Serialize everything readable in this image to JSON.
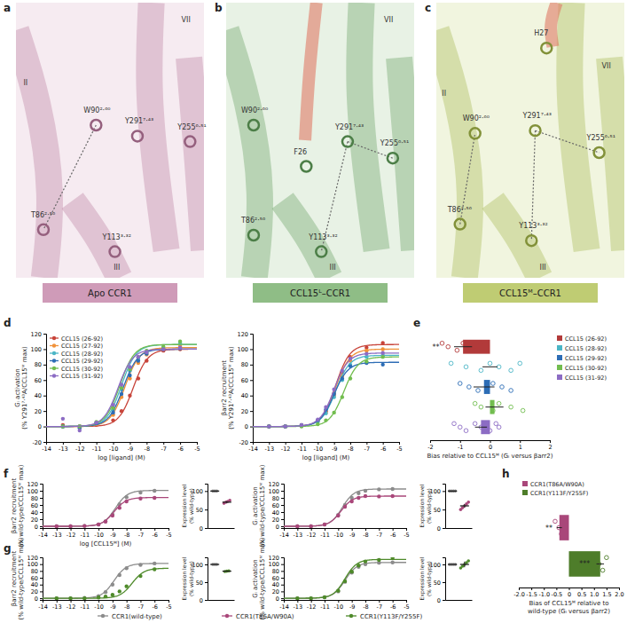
{
  "panel_labels": [
    "a",
    "b",
    "c",
    "d",
    "e",
    "f",
    "g",
    "h"
  ],
  "structures": [
    {
      "caption": "Apo CCR1",
      "labels": [
        "II",
        "VII",
        "W90²·⁶⁰",
        "Y291⁷·⁴³",
        "Y255⁶·⁵¹",
        "T86²·⁵⁶",
        "Y113³·³²",
        "III"
      ]
    },
    {
      "caption": "CCL15ᴸ–CCR1",
      "labels": [
        "VII",
        "W90²·⁶⁰",
        "F26",
        "Y291⁷·⁴³",
        "Y255⁶·⁵¹",
        "T86²·⁵⁶",
        "Y113³·³²",
        "III"
      ]
    },
    {
      "caption": "CCL15ᴹ–CCR1",
      "labels": [
        "H27",
        "VII",
        "II",
        "W90²·⁶⁰",
        "Y291⁷·⁴³",
        "Y255⁶·⁵¹",
        "T86²·⁵⁶",
        "Y113³·³²",
        "III"
      ]
    }
  ],
  "chart_data": [
    {
      "type": "line",
      "marker": "circle",
      "legend": "top left",
      "x_label": "log [ligand] (M)",
      "y_label": [
        "Gᵢ activation",
        "(% Y291⁷·⁴³A/CCL15ᴹ max)"
      ],
      "xlim": [
        -14,
        -5
      ],
      "xticks": [
        -14,
        -13,
        -12,
        -11,
        -10,
        -9,
        -8,
        -7,
        -6,
        -5
      ],
      "ylim": [
        -20,
        120
      ],
      "yticks": [
        -20,
        0,
        20,
        40,
        60,
        80,
        100,
        120
      ],
      "x": [
        -13,
        -12,
        -11,
        -10,
        -9.5,
        -9,
        -8.5,
        -8,
        -7,
        -6
      ],
      "series": [
        {
          "name": "CCL15 (26-92)",
          "color": "#c8443a",
          "values": [
            2,
            0,
            2,
            8,
            20,
            40,
            62,
            85,
            98,
            100
          ],
          "fit": {
            "bottom": 0,
            "top": 100,
            "log_ec50": -8.8
          }
        },
        {
          "name": "CCL15 (27-92)",
          "color": "#f0923a",
          "values": [
            0,
            0,
            3,
            15,
            38,
            62,
            82,
            93,
            100,
            104
          ],
          "fit": {
            "bottom": 0,
            "top": 102,
            "log_ec50": -9.3
          }
        },
        {
          "name": "CCL15 (28-92)",
          "color": "#4bb6c6",
          "values": [
            0,
            0,
            5,
            22,
            48,
            72,
            88,
            96,
            102,
            108
          ],
          "fit": {
            "bottom": 0,
            "top": 106,
            "log_ec50": -9.5
          }
        },
        {
          "name": "CCL15 (29-92)",
          "color": "#2d6db5",
          "values": [
            0,
            -2,
            4,
            18,
            42,
            66,
            85,
            94,
            100,
            101
          ],
          "fit": {
            "bottom": 0,
            "top": 100,
            "log_ec50": -9.4
          }
        },
        {
          "name": "CCL15 (30-92)",
          "color": "#72bd4f",
          "values": [
            0,
            0,
            6,
            24,
            50,
            74,
            90,
            98,
            103,
            110
          ],
          "fit": {
            "bottom": 0,
            "top": 106,
            "log_ec50": -9.6
          }
        },
        {
          "name": "CCL15 (31-92)",
          "color": "#8c6cc4",
          "values": [
            10,
            -5,
            5,
            28,
            54,
            77,
            90,
            96,
            100,
            102
          ],
          "fit": {
            "bottom": 0,
            "top": 100,
            "log_ec50": -9.7
          }
        }
      ]
    },
    {
      "type": "line",
      "marker": "circle",
      "x_label": "log [ligand] (M)",
      "y_label": [
        "βarr2 recruitment",
        "(% Y291⁷·⁴³A/CCL15ᴹ max)"
      ],
      "xlim": [
        -14,
        -5
      ],
      "xticks": [
        -14,
        -13,
        -12,
        -11,
        -10,
        -9,
        -8,
        -7,
        -6,
        -5
      ],
      "ylim": [
        -20,
        120
      ],
      "yticks": [
        -20,
        0,
        20,
        40,
        60,
        80,
        100,
        120
      ],
      "x": [
        -13,
        -12,
        -11,
        -10,
        -9.5,
        -9,
        -8.5,
        -8,
        -7,
        -6
      ],
      "series": [
        {
          "color": "#c8443a",
          "values": [
            0,
            0,
            1,
            8,
            20,
            43,
            70,
            90,
            102,
            108
          ],
          "fit": {
            "bottom": 0,
            "top": 106,
            "log_ec50": -8.9
          }
        },
        {
          "color": "#f0923a",
          "values": [
            0,
            0,
            2,
            7,
            18,
            40,
            65,
            85,
            98,
            100
          ],
          "fit": {
            "bottom": 0,
            "top": 100,
            "log_ec50": -8.9
          }
        },
        {
          "color": "#4bb6c6",
          "values": [
            0,
            0,
            1,
            6,
            17,
            38,
            60,
            80,
            90,
            92
          ],
          "fit": {
            "bottom": 0,
            "top": 92,
            "log_ec50": -8.9
          }
        },
        {
          "color": "#2d6db5",
          "values": [
            0,
            0,
            2,
            8,
            22,
            42,
            62,
            78,
            82,
            80
          ],
          "fit": {
            "bottom": 0,
            "top": 83,
            "log_ec50": -9.0
          }
        },
        {
          "color": "#72bd4f",
          "values": [
            0,
            0,
            0,
            3,
            8,
            18,
            38,
            62,
            84,
            90
          ],
          "fit": {
            "bottom": 0,
            "top": 90,
            "log_ec50": -8.4
          }
        },
        {
          "color": "#8c6cc4",
          "values": [
            0,
            0,
            2,
            9,
            25,
            48,
            72,
            88,
            94,
            95
          ],
          "fit": {
            "bottom": 0,
            "top": 95,
            "log_ec50": -9.0
          }
        }
      ]
    },
    {
      "type": "bar",
      "orientation": "horizontal",
      "legend": "right",
      "marker": "circle",
      "x_label": "Bias relative to CCL15ᴹ (Gᵢ versus βarr2)",
      "xlim": [
        -2,
        2
      ],
      "xticks": [
        -2,
        -1,
        0,
        1,
        2
      ],
      "series": [
        {
          "name": "CCL15 (26-92)",
          "color": "#b23a3a",
          "values": [
            -0.9
          ],
          "errors": [
            0.3
          ],
          "points": [
            -1.6,
            -1.4,
            -1.1,
            -0.9,
            -0.7,
            -0.5,
            -0.3
          ],
          "significance": "**"
        },
        {
          "name": "CCL15 (28-92)",
          "color": "#4bb6c6",
          "values": [
            0.0
          ],
          "errors": [
            0.25
          ],
          "points": [
            -1.3,
            -0.8,
            -0.3,
            0.0,
            0.3,
            0.7,
            1.0
          ]
        },
        {
          "name": "CCL15 (29-92)",
          "color": "#2d6db5",
          "values": [
            -0.2
          ],
          "errors": [
            0.35
          ],
          "points": [
            -1.0,
            -0.7,
            -0.4,
            0.1,
            0.4,
            0.7
          ]
        },
        {
          "name": "CCL15 (30-92)",
          "color": "#72bd4f",
          "values": [
            0.15
          ],
          "errors": [
            0.3
          ],
          "points": [
            -0.5,
            -0.3,
            0.1,
            0.3,
            0.7,
            1.1
          ]
        },
        {
          "name": "CCL15 (31-92)",
          "color": "#8c6cc4",
          "values": [
            -0.3
          ],
          "errors": [
            0.2
          ],
          "points": [
            -1.2,
            -1.0,
            -0.8,
            -0.5,
            -0.3,
            0.0,
            0.2,
            0.3
          ]
        }
      ]
    },
    {
      "type": "line",
      "marker": "circle",
      "legend": "bottom",
      "x_label": "log [CCL15ᴹ] (M)",
      "y_label": [
        "βarr2 recruitment",
        "(% wild-type/CCL15ᴹ max)"
      ],
      "xlim": [
        -14,
        -5
      ],
      "xticks": [
        -14,
        -13,
        -12,
        -11,
        -10,
        -9,
        -8,
        -7,
        -6,
        -5
      ],
      "ylim": [
        -5,
        120
      ],
      "yticks": [
        0,
        20,
        40,
        60,
        80,
        100,
        120
      ],
      "x": [
        -13,
        -12,
        -11,
        -10,
        -9.5,
        -9,
        -8.5,
        -8,
        -7,
        -6
      ],
      "series": [
        {
          "name": "CCR1(wild-type)",
          "color": "#8c8c8c",
          "values": [
            0,
            0,
            1,
            5,
            14,
            33,
            62,
            82,
            95,
            100
          ],
          "fit": {
            "bottom": 0,
            "top": 101,
            "log_ec50": -8.8
          }
        },
        {
          "name": "CCR1(T86A/W90A)",
          "color": "#a9477a",
          "values": [
            0,
            0,
            1,
            5,
            13,
            30,
            52,
            70,
            78,
            80
          ],
          "fit": {
            "bottom": 0,
            "top": 81,
            "log_ec50": -8.9
          }
        }
      ]
    },
    {
      "type": "scatter",
      "y_label": [
        "Expression level",
        "(% wild-type)"
      ],
      "categories": [
        null,
        null
      ],
      "ylim": [
        0,
        120
      ],
      "yticks": [
        0,
        50,
        100
      ],
      "values": [
        100,
        70
      ],
      "errors": [
        0,
        3
      ],
      "colors": [
        "#8c8c8c",
        "#a9477a"
      ],
      "points": [
        [
          100,
          100,
          100
        ],
        [
          67,
          70,
          72,
          75
        ]
      ]
    },
    {
      "type": "line",
      "marker": "circle",
      "y_label": [
        "Gᵢ activation",
        "(% wild-type/CCL15ᴹ max)"
      ],
      "xlim": [
        -14,
        -5
      ],
      "xticks": [
        -14,
        -13,
        -12,
        -11,
        -10,
        -9,
        -8,
        -7,
        -6,
        -5
      ],
      "ylim": [
        -5,
        120
      ],
      "yticks": [
        0,
        20,
        40,
        60,
        80,
        100,
        120
      ],
      "x": [
        -13,
        -12,
        -11,
        -10,
        -9.5,
        -9,
        -8.5,
        -8,
        -7,
        -6
      ],
      "series": [
        {
          "color": "#8c8c8c",
          "values": [
            0,
            0,
            5,
            32,
            60,
            80,
            93,
            100,
            104,
            105
          ],
          "fit": {
            "bottom": 0,
            "top": 105,
            "log_ec50": -9.7
          }
        },
        {
          "color": "#a9477a",
          "values": [
            0,
            0,
            5,
            30,
            55,
            70,
            80,
            85,
            84,
            85
          ],
          "fit": {
            "bottom": 0,
            "top": 85,
            "log_ec50": -9.8
          }
        }
      ]
    },
    {
      "type": "scatter",
      "y_label": [
        "Expression level",
        "(% wild-type)"
      ],
      "categories": [
        null,
        null
      ],
      "ylim": [
        0,
        120
      ],
      "yticks": [
        0,
        50,
        100
      ],
      "values": [
        100,
        60
      ],
      "errors": [
        0,
        5
      ],
      "colors": [
        "#8c8c8c",
        "#a9477a"
      ],
      "points": [
        [
          100,
          100,
          100,
          100
        ],
        [
          50,
          55,
          60,
          65,
          70
        ]
      ]
    },
    {
      "type": "line",
      "marker": "circle",
      "y_label": [
        "βarr2 recruitment",
        "(% wild-type/CCL15ᴹ max)"
      ],
      "xlim": [
        -14,
        -5
      ],
      "xticks": [
        -14,
        -13,
        -12,
        -11,
        -10,
        -9,
        -8,
        -7,
        -6,
        -5
      ],
      "ylim": [
        -5,
        120
      ],
      "yticks": [
        0,
        20,
        40,
        60,
        80,
        100,
        120
      ],
      "x": [
        -13,
        -12,
        -11,
        -10,
        -9.5,
        -9,
        -8.5,
        -8,
        -7,
        -6
      ],
      "series": [
        {
          "color": "#8c8c8c",
          "values": [
            0,
            0,
            1,
            6,
            18,
            40,
            68,
            88,
            98,
            102
          ],
          "fit": {
            "bottom": 0,
            "top": 102,
            "log_ec50": -8.9
          }
        },
        {
          "name": "CCR1(Y113F/Y255F)",
          "color": "#4e8a2a",
          "values": [
            0,
            0,
            0,
            2,
            5,
            10,
            20,
            35,
            65,
            85
          ],
          "fit": {
            "bottom": 0,
            "top": 88,
            "log_ec50": -7.6
          }
        }
      ]
    },
    {
      "type": "scatter",
      "y_label": [
        "Expression level",
        "(% wild-type)"
      ],
      "categories": [
        null,
        null
      ],
      "ylim": [
        0,
        120
      ],
      "yticks": [
        0,
        50,
        100
      ],
      "values": [
        100,
        81
      ],
      "errors": [
        0,
        1
      ],
      "colors": [
        "#8c8c8c",
        "#4e8a2a"
      ],
      "points": [
        [
          100,
          100,
          100
        ],
        [
          80,
          81,
          82
        ]
      ]
    },
    {
      "type": "line",
      "marker": "circle",
      "y_label": [
        "Gᵢ activation",
        "(% wild-type/CCL15ᴹ max)"
      ],
      "xlim": [
        -14,
        -5
      ],
      "xticks": [
        -14,
        -13,
        -12,
        -11,
        -10,
        -9,
        -8,
        -7,
        -6,
        -5
      ],
      "ylim": [
        -5,
        120
      ],
      "yticks": [
        0,
        20,
        40,
        60,
        80,
        100,
        120
      ],
      "x": [
        -13,
        -12,
        -11,
        -10,
        -9.5,
        -9,
        -8.5,
        -8,
        -7,
        -6
      ],
      "series": [
        {
          "color": "#8c8c8c",
          "values": [
            0,
            0,
            3,
            20,
            48,
            75,
            92,
            100,
            104,
            105
          ],
          "fit": {
            "bottom": 0,
            "top": 105,
            "log_ec50": -9.5
          }
        },
        {
          "color": "#4e8a2a",
          "values": [
            0,
            0,
            3,
            22,
            50,
            78,
            96,
            108,
            112,
            118
          ],
          "fit": {
            "bottom": 0,
            "top": 114,
            "log_ec50": -9.5
          }
        }
      ]
    },
    {
      "type": "scatter",
      "y_label": [
        "Expression level",
        "(% wild-type)"
      ],
      "categories": [
        null,
        null
      ],
      "ylim": [
        0,
        120
      ],
      "yticks": [
        0,
        50,
        100
      ],
      "values": [
        100,
        100
      ],
      "errors": [
        0,
        8
      ],
      "colors": [
        "#8c8c8c",
        "#4e8a2a"
      ],
      "points": [
        [
          100,
          100,
          100,
          100
        ],
        [
          90,
          95,
          100,
          105,
          110
        ]
      ]
    },
    {
      "type": "bar",
      "orientation": "horizontal",
      "legend": "top",
      "marker": "circle",
      "x_label": [
        "Bias of CCL15ᴹ relative to",
        "wild-type (Gᵢ versus βarr2)"
      ],
      "xlim": [
        -2,
        2
      ],
      "xticks": [
        {
          "value": -2,
          "label": "-2.0"
        },
        {
          "value": -1.5,
          "label": "-1.5"
        },
        {
          "value": -1,
          "label": "-1.0"
        },
        {
          "value": -0.5,
          "label": "-0.5"
        },
        {
          "value": 0,
          "label": "0"
        },
        {
          "value": 0.5,
          "label": "0.5"
        },
        {
          "value": 1,
          "label": "1.0"
        },
        {
          "value": 1.5,
          "label": "1.5"
        },
        {
          "value": 2,
          "label": "2.0"
        }
      ],
      "series": [
        {
          "name": "CCR1(T86A/W90A)",
          "color": "#a9477a",
          "values": [
            -0.38
          ],
          "errors": [
            0.1
          ],
          "points": [
            -0.55,
            -0.4,
            -0.3,
            -0.25
          ],
          "significance": "**"
        },
        {
          "name": "CCR1(Y113F/Y255F)",
          "color": "#4e7d2a",
          "values": [
            1.25
          ],
          "errors": [
            0.15
          ],
          "points": [
            0.95,
            1.2,
            1.35,
            1.5
          ],
          "significance": "***"
        }
      ]
    }
  ]
}
